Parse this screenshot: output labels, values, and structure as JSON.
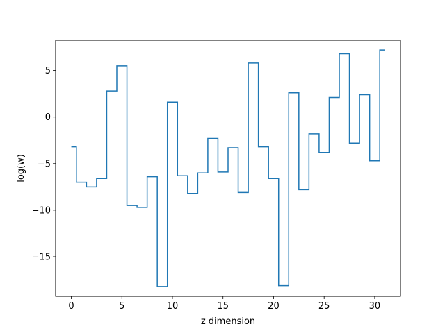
{
  "chart_data": {
    "type": "line",
    "step": "mid",
    "title": "",
    "xlabel": "z dimension",
    "ylabel": "log(w)",
    "xlim": [
      -1.55,
      32.55
    ],
    "ylim": [
      -19.25,
      8.25
    ],
    "xticks": [
      0,
      5,
      10,
      15,
      20,
      25,
      30
    ],
    "yticks": [
      -15,
      -10,
      -5,
      0,
      5
    ],
    "xtick_labels": [
      "0",
      "5",
      "10",
      "15",
      "20",
      "25",
      "30"
    ],
    "ytick_labels": [
      "−15",
      "−10",
      "−5",
      "0",
      "5"
    ],
    "grid": false,
    "legend": "none",
    "series": [
      {
        "color": "#1f77b4",
        "x": [
          0,
          1,
          2,
          3,
          4,
          5,
          6,
          7,
          8,
          9,
          10,
          11,
          12,
          13,
          14,
          15,
          16,
          17,
          18,
          19,
          20,
          21,
          22,
          23,
          24,
          25,
          26,
          27,
          28,
          29,
          30,
          31
        ],
        "values": [
          -3.2,
          -7.0,
          -7.5,
          -6.6,
          2.8,
          5.5,
          -9.5,
          -9.7,
          -6.4,
          -18.2,
          1.6,
          -6.3,
          -8.2,
          -6.0,
          -2.3,
          -5.9,
          -3.3,
          -8.1,
          5.8,
          -3.2,
          -6.6,
          -18.1,
          2.6,
          -7.8,
          -1.8,
          -3.8,
          2.1,
          6.8,
          -2.8,
          2.4,
          -4.7,
          7.2
        ]
      }
    ]
  }
}
